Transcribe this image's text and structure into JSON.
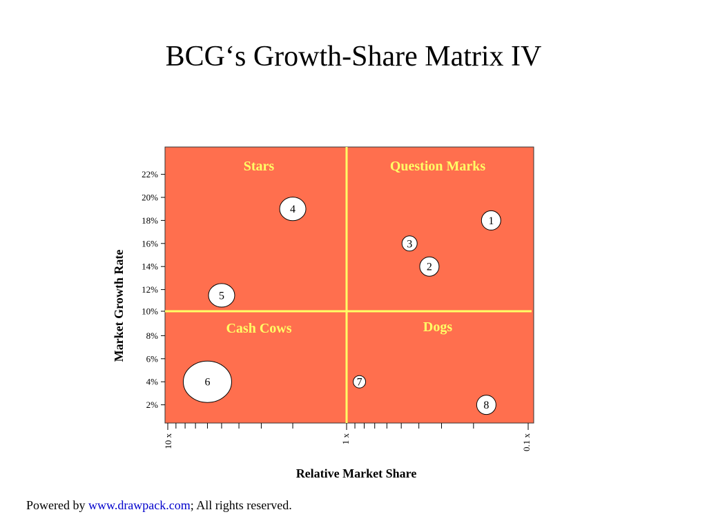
{
  "title": "BCG‘s Growth-Share Matrix IV",
  "colors": {
    "background": "#ff6f4e",
    "divider": "#ffff66",
    "quadrant_label": "#ffff66",
    "bubble_fill": "#ffffff",
    "link": "#0000cc"
  },
  "quadrants": {
    "stars": "Stars",
    "question_marks": "Question Marks",
    "cash_cows": "Cash Cows",
    "dogs": "Dogs"
  },
  "y_axis": {
    "title": "Market Growth Rate",
    "ticks": [
      "22%",
      "20%",
      "18%",
      "16%",
      "14%",
      "12%",
      "10%",
      "8%",
      "6%",
      "4%",
      "2%"
    ]
  },
  "x_axis": {
    "title": "Relative Market Share",
    "labels": {
      "left": "10 x",
      "middle": "1 x",
      "right": "0.1 x"
    }
  },
  "bubbles": [
    {
      "id": "1",
      "share": 0.16,
      "growth": 18.0,
      "size": "small"
    },
    {
      "id": "2",
      "share": 0.35,
      "growth": 14.0,
      "size": "small"
    },
    {
      "id": "3",
      "share": 0.45,
      "growth": 16.0,
      "size": "xsmall"
    },
    {
      "id": "4",
      "share": 2.0,
      "growth": 19.0,
      "size": "medium"
    },
    {
      "id": "5",
      "share": 5.0,
      "growth": 11.5,
      "size": "medium"
    },
    {
      "id": "6",
      "share": 6.0,
      "growth": 4.0,
      "size": "large"
    },
    {
      "id": "7",
      "share": 0.85,
      "growth": 4.0,
      "size": "tiny"
    },
    {
      "id": "8",
      "share": 0.17,
      "growth": 2.0,
      "size": "small"
    }
  ],
  "footer": {
    "prefix": "Powered by ",
    "link_text": "www.drawpack.com",
    "suffix": "; All rights reserved."
  }
}
